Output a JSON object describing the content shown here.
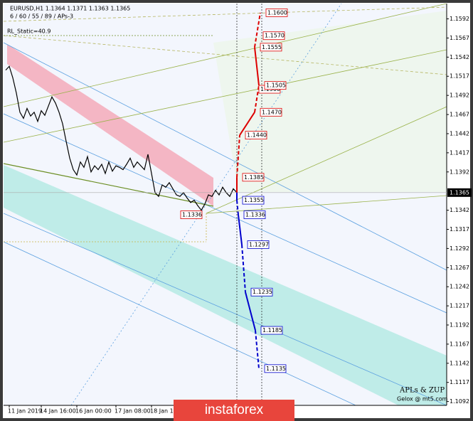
{
  "header": {
    "symbol_line": "EURUSD,H1  1.1364 1.1371 1.1363 1.1365",
    "indicator_line": "6 / 60 / 55 / 89 / APs-3",
    "rl_static": "RL_Static=40.9"
  },
  "chart_data": {
    "type": "line",
    "categories": [
      null,
      "11 Jan 2019",
      null,
      null,
      null,
      null,
      null,
      null,
      null,
      null,
      "14 Jan 16:00",
      null,
      null,
      null,
      null,
      null,
      null,
      null,
      null,
      null,
      "16 Jan 00:00",
      null,
      null,
      null,
      null,
      null,
      null,
      null,
      null,
      null,
      null,
      "17 Jan 08:00",
      null,
      null,
      null,
      null,
      null,
      null,
      null,
      null,
      null,
      "18 Jan 16:00",
      null,
      null,
      null,
      null,
      null,
      null,
      null,
      null,
      null,
      null,
      null,
      null,
      null,
      null,
      null,
      null,
      null,
      null,
      null,
      null,
      null,
      null,
      null,
      null
    ],
    "values": [
      1.1525,
      1.153,
      1.1515,
      1.1495,
      1.147,
      1.1462,
      1.1475,
      1.1465,
      1.147,
      1.1458,
      1.1472,
      1.1466,
      1.1478,
      1.149,
      1.1482,
      1.147,
      1.1455,
      1.1432,
      1.141,
      1.1395,
      1.1388,
      1.1405,
      1.1398,
      1.1412,
      1.1392,
      1.14,
      1.1395,
      1.1402,
      1.139,
      1.1405,
      1.1393,
      1.14,
      1.1398,
      1.1395,
      1.1402,
      1.141,
      1.1398,
      1.1405,
      1.14,
      1.1395,
      1.1415,
      1.139,
      1.1365,
      1.136,
      1.1375,
      1.1372,
      1.1378,
      1.137,
      1.1362,
      1.136,
      1.1365,
      1.1358,
      1.1352,
      1.1355,
      1.1348,
      1.1342,
      1.135,
      1.1362,
      1.136,
      1.1368,
      1.1362,
      1.1372,
      1.1365,
      1.136,
      1.137,
      1.1365
    ],
    "color": "#000000",
    "ylim": [
      1.1087,
      1.1612
    ],
    "yticks": [
      1.1092,
      1.1117,
      1.1142,
      1.1167,
      1.1192,
      1.1217,
      1.1242,
      1.1267,
      1.1292,
      1.1317,
      1.1342,
      1.1392,
      1.1417,
      1.1442,
      1.1467,
      1.1492,
      1.1517,
      1.1542,
      1.1567,
      1.1592
    ],
    "current_price": 1.1365,
    "up_targets": [
      {
        "value": 1.1385,
        "label": "1.1385"
      },
      {
        "value": 1.144,
        "label": "1.1440"
      },
      {
        "value": 1.147,
        "label": "1.1470"
      },
      {
        "value": 1.15,
        "label": "1.1500"
      },
      {
        "value": 1.1505,
        "label": "1.1505"
      },
      {
        "value": 1.1555,
        "label": "1.1555"
      },
      {
        "value": 1.157,
        "label": "1.1570"
      },
      {
        "value": 1.16,
        "label": "1.1600"
      }
    ],
    "down_targets": [
      {
        "value": 1.1355,
        "label": "1.1355"
      },
      {
        "value": 1.1336,
        "label": "1.1336"
      },
      {
        "value": 1.1297,
        "label": "1.1297"
      },
      {
        "value": 1.1235,
        "label": "1.1235"
      },
      {
        "value": 1.1185,
        "label": "1.1185"
      },
      {
        "value": 1.1135,
        "label": "1.1135"
      }
    ],
    "low_mark": {
      "value": 1.1336,
      "label": "1.1336"
    },
    "up_color": "#dd0000",
    "down_color": "#0000cc",
    "watermark": "APLs & ZUP",
    "watermark_sub": "Gelox @ mt5.com"
  },
  "logo": "instaforex"
}
